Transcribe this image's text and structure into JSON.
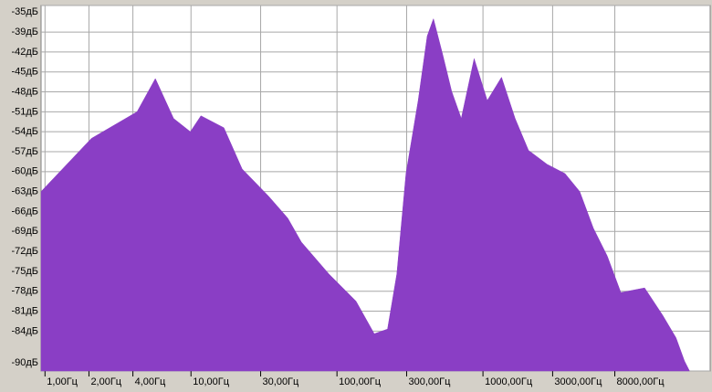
{
  "chart_data": {
    "type": "area",
    "xscale": "log",
    "grid": true,
    "color": "#8a3ec5",
    "x": [
      0.94,
      2.08,
      4.27,
      5.7,
      7.6,
      9.9,
      11.7,
      16.8,
      22.4,
      34,
      46,
      57,
      88,
      135,
      180,
      222,
      257,
      297,
      360,
      415,
      458,
      530,
      610,
      710,
      870,
      1070,
      1340,
      1660,
      2050,
      2750,
      3650,
      4600,
      5700,
      7100,
      8800,
      12800,
      17000,
      21000,
      24000,
      26000
    ],
    "values": [
      -63,
      -55,
      -51,
      -46,
      -52,
      -54,
      -51.6,
      -53.4,
      -59.6,
      -63.7,
      -67,
      -70.6,
      -75.4,
      -79.5,
      -84.4,
      -83.7,
      -75.4,
      -60.3,
      -49.3,
      -39.6,
      -37,
      -42.4,
      -47.9,
      -52,
      -43,
      -49.3,
      -45.8,
      -52,
      -56.8,
      -58.9,
      -60.3,
      -63,
      -68.5,
      -72.7,
      -78.2,
      -77.5,
      -81.6,
      -85,
      -88.5,
      -90
    ],
    "xlim": [
      0.94,
      36000
    ],
    "ylim": [
      -90,
      -35
    ],
    "xticks": [
      {
        "value": 1,
        "label": "1,00Гц"
      },
      {
        "value": 2,
        "label": "2,00Гц"
      },
      {
        "value": 4,
        "label": "4,00Гц"
      },
      {
        "value": 10,
        "label": "10,00Гц"
      },
      {
        "value": 30,
        "label": "30,00Гц"
      },
      {
        "value": 100,
        "label": "100,00Гц"
      },
      {
        "value": 300,
        "label": "300,00Гц"
      },
      {
        "value": 1000,
        "label": "1000,00Гц"
      },
      {
        "value": 3000,
        "label": "3000,00Гц"
      },
      {
        "value": 8000,
        "label": "8000,00Гц"
      }
    ],
    "yticks": [
      {
        "value": -35,
        "label": "-35дБ"
      },
      {
        "value": -39,
        "label": "-39дБ"
      },
      {
        "value": -42,
        "label": "-42дБ"
      },
      {
        "value": -45,
        "label": "-45дБ"
      },
      {
        "value": -48,
        "label": "-48дБ"
      },
      {
        "value": -51,
        "label": "-51дБ"
      },
      {
        "value": -54,
        "label": "-54дБ"
      },
      {
        "value": -57,
        "label": "-57дБ"
      },
      {
        "value": -60,
        "label": "-60дБ"
      },
      {
        "value": -63,
        "label": "-63дБ"
      },
      {
        "value": -66,
        "label": "-66дБ"
      },
      {
        "value": -69,
        "label": "-69дБ"
      },
      {
        "value": -72,
        "label": "-72дБ"
      },
      {
        "value": -75,
        "label": "-75дБ"
      },
      {
        "value": -78,
        "label": "-78дБ"
      },
      {
        "value": -81,
        "label": "-81дБ"
      },
      {
        "value": -84,
        "label": "-84дБ"
      },
      {
        "value": -90,
        "label": "-90дБ"
      }
    ]
  }
}
